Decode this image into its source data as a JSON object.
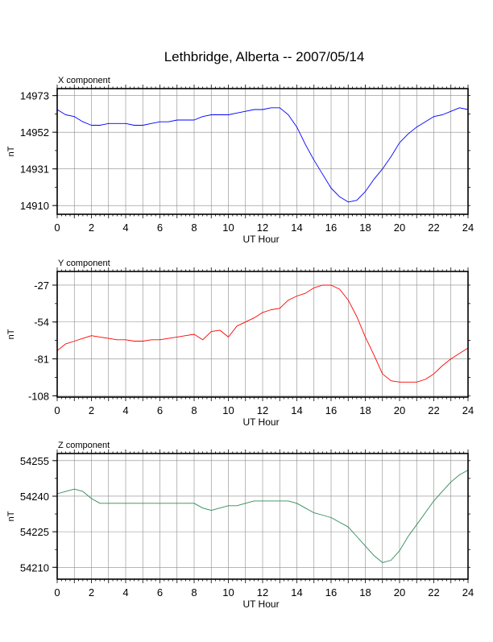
{
  "title": "Lethbridge, Alberta -- 2007/05/14",
  "chart_data": [
    {
      "type": "line",
      "panel_label": "X component",
      "xlabel": "UT Hour",
      "ylabel": "nT",
      "xlim": [
        0,
        24
      ],
      "ylim": [
        14905,
        14977
      ],
      "x_ticks": [
        "0",
        "2",
        "4",
        "6",
        "8",
        "10",
        "12",
        "14",
        "16",
        "18",
        "20",
        "22",
        "24"
      ],
      "y_ticks": [
        "14973",
        "14952",
        "14931",
        "14910"
      ],
      "y_tick_values": [
        14973,
        14952,
        14931,
        14910
      ],
      "grid": true,
      "series": [
        {
          "color": "#0000ff",
          "x": [
            0,
            0.5,
            1,
            1.5,
            2,
            2.5,
            3,
            3.5,
            4,
            4.5,
            5,
            5.5,
            6,
            6.5,
            7,
            7.5,
            8,
            8.5,
            9,
            9.5,
            10,
            10.5,
            11,
            11.5,
            12,
            12.5,
            13,
            13.5,
            14,
            14.5,
            15,
            15.5,
            16,
            16.5,
            17,
            17.5,
            18,
            18.5,
            19,
            19.5,
            20,
            20.5,
            21,
            21.5,
            22,
            22.5,
            23,
            23.5,
            24
          ],
          "y": [
            14965,
            14962,
            14961,
            14958,
            14956,
            14956,
            14957,
            14957,
            14957,
            14956,
            14956,
            14957,
            14958,
            14958,
            14959,
            14959,
            14959,
            14961,
            14962,
            14962,
            14962,
            14963,
            14964,
            14965,
            14965,
            14966,
            14966,
            14962,
            14955,
            14945,
            14936,
            14928,
            14920,
            14915,
            14912,
            14913,
            14918,
            14925,
            14931,
            14938,
            14946,
            14951,
            14955,
            14958,
            14961,
            14962,
            14964,
            14966,
            14965
          ]
        }
      ]
    },
    {
      "type": "line",
      "panel_label": "Y component",
      "xlabel": "UT Hour",
      "ylabel": "nT",
      "xlim": [
        0,
        24
      ],
      "ylim": [
        -109,
        -17
      ],
      "x_ticks": [
        "0",
        "2",
        "4",
        "6",
        "8",
        "10",
        "12",
        "14",
        "16",
        "18",
        "20",
        "22",
        "24"
      ],
      "y_ticks": [
        "-27",
        "-54",
        "-81",
        "-108"
      ],
      "y_tick_values": [
        -27,
        -54,
        -81,
        -108
      ],
      "grid": true,
      "series": [
        {
          "color": "#ff0000",
          "x": [
            0,
            0.5,
            1,
            1.5,
            2,
            2.5,
            3,
            3.5,
            4,
            4.5,
            5,
            5.5,
            6,
            6.5,
            7,
            7.5,
            8,
            8.5,
            9,
            9.5,
            10,
            10.5,
            11,
            11.5,
            12,
            12.5,
            13,
            13.5,
            14,
            14.5,
            15,
            15.5,
            16,
            16.5,
            17,
            17.5,
            18,
            18.5,
            19,
            19.5,
            20,
            20.5,
            21,
            21.5,
            22,
            22.5,
            23,
            23.5,
            24
          ],
          "y": [
            -75,
            -70,
            -68,
            -66,
            -64,
            -65,
            -66,
            -67,
            -67,
            -68,
            -68,
            -67,
            -67,
            -66,
            -65,
            -64,
            -63,
            -67,
            -61,
            -60,
            -65,
            -57,
            -54,
            -51,
            -47,
            -45,
            -44,
            -38,
            -35,
            -33,
            -29,
            -27,
            -27,
            -30,
            -38,
            -50,
            -65,
            -78,
            -92,
            -97,
            -98,
            -98,
            -98,
            -96,
            -92,
            -86,
            -81,
            -77,
            -73
          ]
        }
      ]
    },
    {
      "type": "line",
      "panel_label": "Z component",
      "xlabel": "UT Hour",
      "ylabel": "nT",
      "xlim": [
        0,
        24
      ],
      "ylim": [
        54205,
        54258
      ],
      "x_ticks": [
        "0",
        "2",
        "4",
        "6",
        "8",
        "10",
        "12",
        "14",
        "16",
        "18",
        "20",
        "22",
        "24"
      ],
      "y_ticks": [
        "54255",
        "54240",
        "54225",
        "54210"
      ],
      "y_tick_values": [
        54255,
        54240,
        54225,
        54210
      ],
      "grid": true,
      "series": [
        {
          "color": "#2e8b57",
          "x": [
            0,
            0.5,
            1,
            1.5,
            2,
            2.5,
            3,
            3.5,
            4,
            4.5,
            5,
            5.5,
            6,
            6.5,
            7,
            7.5,
            8,
            8.5,
            9,
            9.5,
            10,
            10.5,
            11,
            11.5,
            12,
            12.5,
            13,
            13.5,
            14,
            14.5,
            15,
            15.5,
            16,
            16.5,
            17,
            17.5,
            18,
            18.5,
            19,
            19.5,
            20,
            20.5,
            21,
            21.5,
            22,
            22.5,
            23,
            23.5,
            24
          ],
          "y": [
            54241,
            54242,
            54243,
            54242,
            54239,
            54237,
            54237,
            54237,
            54237,
            54237,
            54237,
            54237,
            54237,
            54237,
            54237,
            54237,
            54237,
            54235,
            54234,
            54235,
            54236,
            54236,
            54237,
            54238,
            54238,
            54238,
            54238,
            54238,
            54237,
            54235,
            54233,
            54232,
            54231,
            54229,
            54227,
            54223,
            54219,
            54215,
            54212,
            54213,
            54217,
            54223,
            54228,
            54233,
            54238,
            54242,
            54246,
            54249,
            54251
          ]
        }
      ]
    }
  ]
}
